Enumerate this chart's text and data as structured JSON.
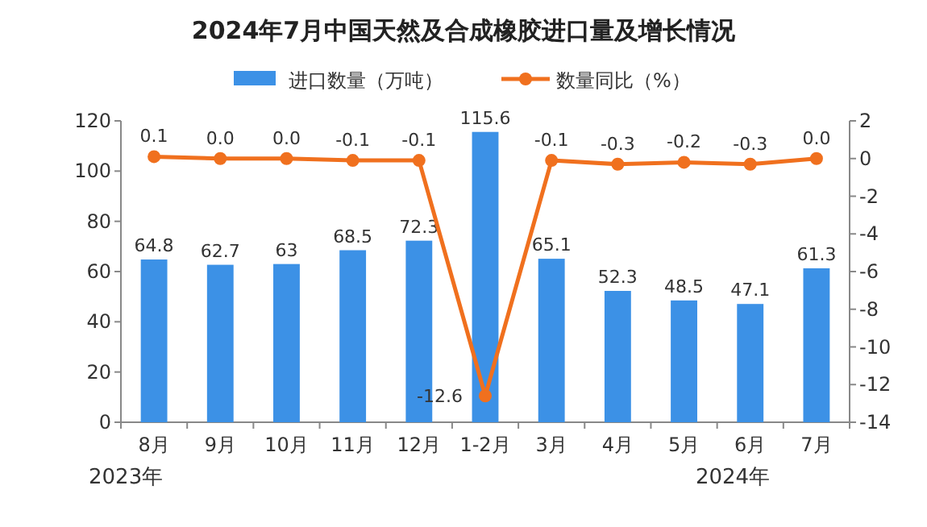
{
  "chart_data": {
    "type": "bar",
    "title": "2024年7月中国天然及合成橡胶进口量及增长情况",
    "categories": [
      "8月",
      "9月",
      "10月",
      "11月",
      "12月",
      "1-2月",
      "3月",
      "4月",
      "5月",
      "6月",
      "7月"
    ],
    "series": [
      {
        "name": "进口数量（万吨）",
        "color": "#3c91e6",
        "values": [
          64.8,
          62.7,
          63,
          68.5,
          72.3,
          115.6,
          65.1,
          52.3,
          48.5,
          47.1,
          61.3
        ],
        "value_labels": [
          "64.8",
          "62.7",
          "63",
          "68.5",
          "72.3",
          "115.6",
          "65.1",
          "52.3",
          "48.5",
          "47.1",
          "61.3"
        ]
      },
      {
        "name": "数量同比（%）",
        "type": "line",
        "axis": "y2",
        "color": "#f0701e",
        "values": [
          0.1,
          0.0,
          0.0,
          -0.1,
          -0.1,
          -12.6,
          -0.1,
          -0.3,
          -0.2,
          -0.3,
          0.0
        ],
        "value_labels": [
          "0.1",
          "0.0",
          "0.0",
          "-0.1",
          "-0.1",
          "-12.6",
          "-0.1",
          "-0.3",
          "-0.2",
          "-0.3",
          "0.0"
        ]
      }
    ],
    "ylim": [
      0,
      120
    ],
    "yticks": [
      0,
      20,
      40,
      60,
      80,
      100,
      120
    ],
    "y2lim": [
      -14,
      2
    ],
    "y2ticks": [
      -14,
      -12,
      -10,
      -8,
      -6,
      -4,
      -2,
      0,
      2
    ],
    "marker": "circle",
    "legend": "top",
    "annotations": [
      {
        "text": "2023年"
      },
      {
        "text": "2024年"
      }
    ]
  }
}
